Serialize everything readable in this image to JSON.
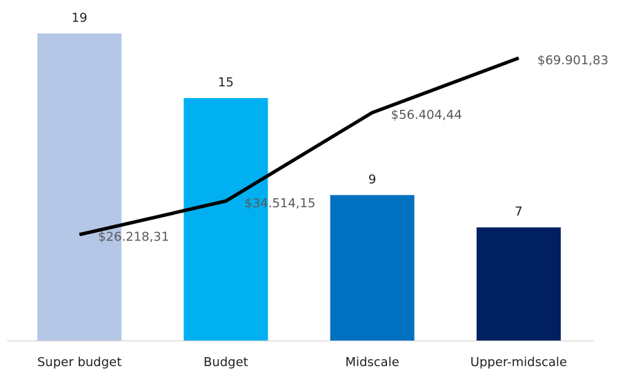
{
  "chart_data": {
    "type": "bar",
    "categories": [
      "Super budget",
      "Budget",
      "Midscale",
      "Upper-midscale"
    ],
    "ylim": [
      0,
      20
    ],
    "y2lim": [
      0,
      80000
    ],
    "series": [
      {
        "type": "bar",
        "colors": [
          "#b4c7e7",
          "#00b0f0",
          "#0070c0",
          "#002060"
        ],
        "values": [
          19,
          15,
          9,
          7
        ]
      },
      {
        "type": "line",
        "axis": "y2",
        "color": "#000000",
        "values": [
          26218.31,
          34514.15,
          56404.44,
          69901.83
        ],
        "value_labels": [
          "$26.218,31",
          "$34.514,15",
          "$56.404,44",
          "$69.901,83"
        ]
      }
    ]
  }
}
